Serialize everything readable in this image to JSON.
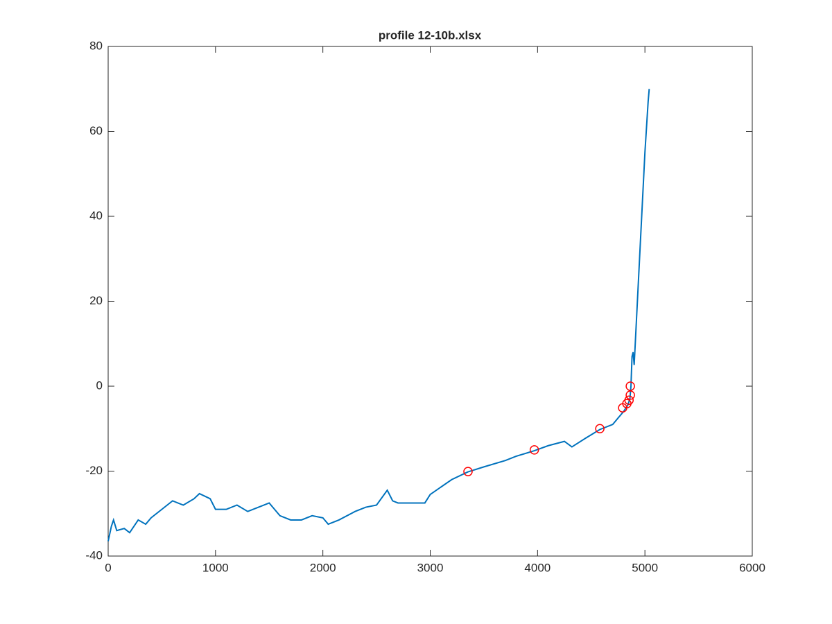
{
  "chart_data": {
    "type": "line",
    "title": "profile 12-10b.xlsx",
    "xlim": [
      0,
      6000
    ],
    "xticks": [
      0,
      1000,
      2000,
      3000,
      4000,
      5000,
      6000
    ],
    "ylim": [
      -40,
      80
    ],
    "yticks": [
      -40,
      -20,
      0,
      20,
      40,
      60,
      80
    ],
    "grid": false,
    "series": [
      {
        "color": "#0072bd",
        "style": "line",
        "x": [
          0,
          30,
          50,
          80,
          150,
          200,
          280,
          350,
          400,
          500,
          600,
          700,
          800,
          850,
          950,
          1000,
          1100,
          1200,
          1300,
          1400,
          1500,
          1550,
          1600,
          1700,
          1800,
          1900,
          2000,
          2050,
          2150,
          2300,
          2400,
          2500,
          2600,
          2650,
          2700,
          2800,
          2950,
          3000,
          3200,
          3350,
          3500,
          3700,
          3800,
          3970,
          4100,
          4250,
          4320,
          4450,
          4580,
          4700,
          4800,
          4840,
          4860,
          4870,
          4880,
          4890,
          4900,
          4950,
          5000,
          5030,
          5040
        ],
        "values": [
          -36.5,
          -33,
          -31.5,
          -34,
          -33.5,
          -34.5,
          -31.5,
          -32.5,
          -31,
          -29,
          -27,
          -28,
          -26.5,
          -25.3,
          -26.5,
          -29,
          -29,
          -28,
          -29.5,
          -28.5,
          -27.5,
          -29,
          -30.5,
          -31.5,
          -31.5,
          -30.5,
          -31,
          -32.5,
          -31.5,
          -29.5,
          -28.5,
          -28,
          -24.5,
          -27,
          -27.5,
          -27.5,
          -27.5,
          -25.5,
          -22,
          -20.2,
          -19,
          -17.5,
          -16.5,
          -15.2,
          -14,
          -13,
          -14.3,
          -12.2,
          -10.2,
          -9,
          -6,
          -4.5,
          -3,
          0,
          7,
          8,
          5,
          30,
          55,
          67,
          70
        ]
      },
      {
        "color": "#ff0000",
        "style": "marker",
        "x": [
          3352,
          3970,
          4580,
          4793,
          4832,
          4852,
          4864,
          4864
        ],
        "values": [
          -20.1,
          -15,
          -10,
          -5.1,
          -4.1,
          -3.3,
          -2.1,
          0
        ]
      }
    ]
  }
}
